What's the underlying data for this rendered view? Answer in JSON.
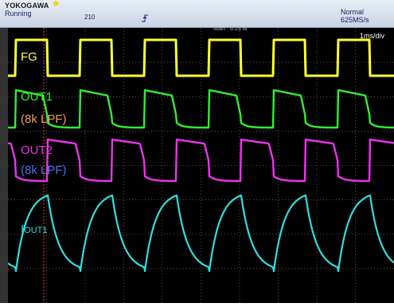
{
  "header": {
    "brand": "YOKOGAWA",
    "run_state": "Running",
    "acquisition_count": "210",
    "trigger_mode": "Normal",
    "sample_rate": "625MS/s"
  },
  "display": {
    "main_info": "Main : 6.25 M",
    "timebase": "1ms/div"
  },
  "channels": {
    "fg": {
      "label": "FG",
      "color": "#ffff33"
    },
    "out1": {
      "label": "OUT1",
      "sublabel": "(8k LPF)",
      "color": "#33ee33",
      "sub_color": "#f0a050"
    },
    "out2": {
      "label": "OUT2",
      "sublabel": "(8k LPF)",
      "color": "#ee33ee",
      "sub_color": "#4f6ff0"
    },
    "iout": {
      "label_main": "I",
      "label_sub": "OUT1",
      "color": "#33dddd"
    }
  },
  "colors": {
    "screen_background": "#000000",
    "grid": "#6f6f6f",
    "trigger_position": "#ff4040"
  }
}
